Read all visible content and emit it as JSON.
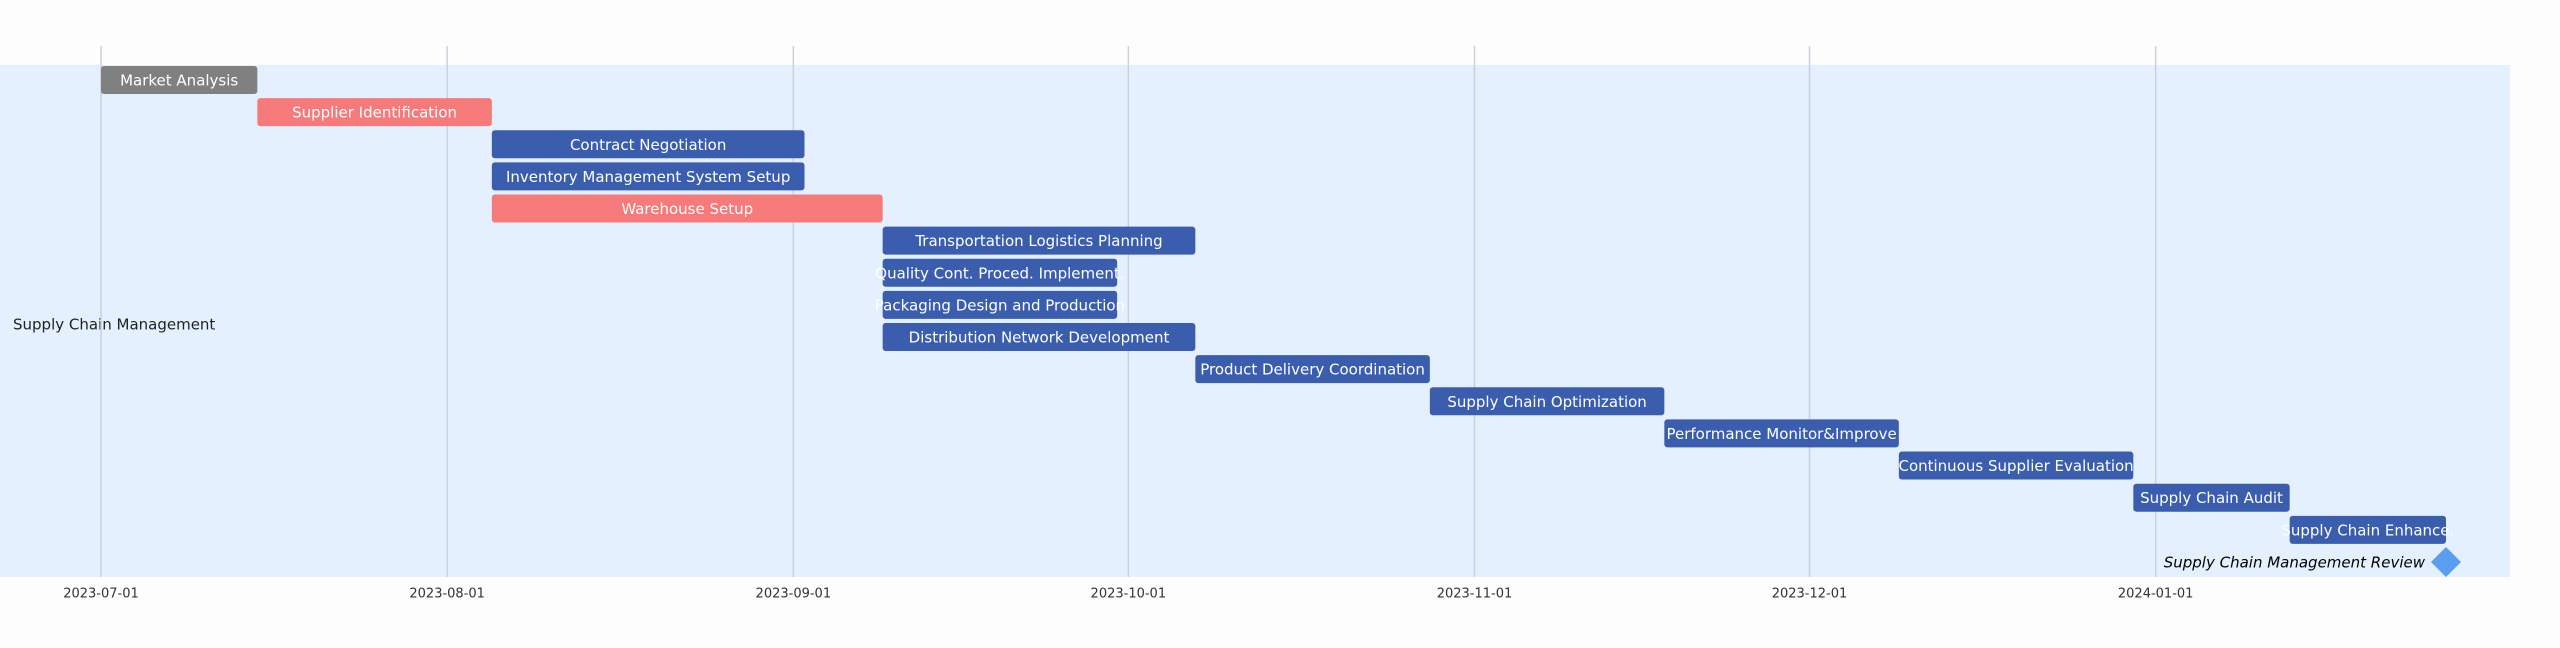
{
  "chart_data": {
    "type": "gantt",
    "section": "Supply Chain Management",
    "xlim": [
      "2023-07-01",
      "2024-01-27"
    ],
    "xticks": [
      "2023-07-01",
      "2023-08-01",
      "2023-09-01",
      "2023-10-01",
      "2023-11-01",
      "2023-12-01",
      "2024-01-01"
    ],
    "grid": true,
    "tasks": [
      {
        "name": "Market Analysis",
        "start": "2023-07-01",
        "end": "2023-07-15",
        "color": "#808080"
      },
      {
        "name": "Supplier Identification",
        "start": "2023-07-15",
        "end": "2023-08-05",
        "color": "#f67a7a"
      },
      {
        "name": "Contract Negotiation",
        "start": "2023-08-05",
        "end": "2023-09-02",
        "color": "#3a5dae"
      },
      {
        "name": "Inventory Management System Setup",
        "start": "2023-08-05",
        "end": "2023-09-02",
        "color": "#3a5dae"
      },
      {
        "name": "Warehouse Setup",
        "start": "2023-08-05",
        "end": "2023-09-09",
        "color": "#f67a7a"
      },
      {
        "name": "Transportation Logistics Planning",
        "start": "2023-09-09",
        "end": "2023-10-07",
        "color": "#3a5dae"
      },
      {
        "name": "Quality Cont. Proced. Implement.",
        "start": "2023-09-09",
        "end": "2023-09-30",
        "color": "#3a5dae"
      },
      {
        "name": "Packaging Design and Production",
        "start": "2023-09-09",
        "end": "2023-09-30",
        "color": "#3a5dae"
      },
      {
        "name": "Distribution Network Development",
        "start": "2023-09-09",
        "end": "2023-10-07",
        "color": "#3a5dae"
      },
      {
        "name": "Product Delivery Coordination",
        "start": "2023-10-07",
        "end": "2023-10-28",
        "color": "#3a5dae"
      },
      {
        "name": "Supply Chain Optimization",
        "start": "2023-10-28",
        "end": "2023-11-18",
        "color": "#3a5dae"
      },
      {
        "name": "Performance Monitor&Improve",
        "start": "2023-11-18",
        "end": "2023-12-09",
        "color": "#3a5dae"
      },
      {
        "name": "Continuous Supplier Evaluation",
        "start": "2023-12-09",
        "end": "2023-12-30",
        "color": "#3a5dae"
      },
      {
        "name": "Supply Chain Audit",
        "start": "2023-12-30",
        "end": "2024-01-13",
        "color": "#3a5dae"
      },
      {
        "name": "Supply Chain Enhance.",
        "start": "2024-01-13",
        "end": "2024-01-27",
        "color": "#3a5dae"
      }
    ],
    "milestones": [
      {
        "name": "Supply Chain Management Review",
        "date": "2024-01-27",
        "color": "#5a9eef"
      }
    ]
  }
}
